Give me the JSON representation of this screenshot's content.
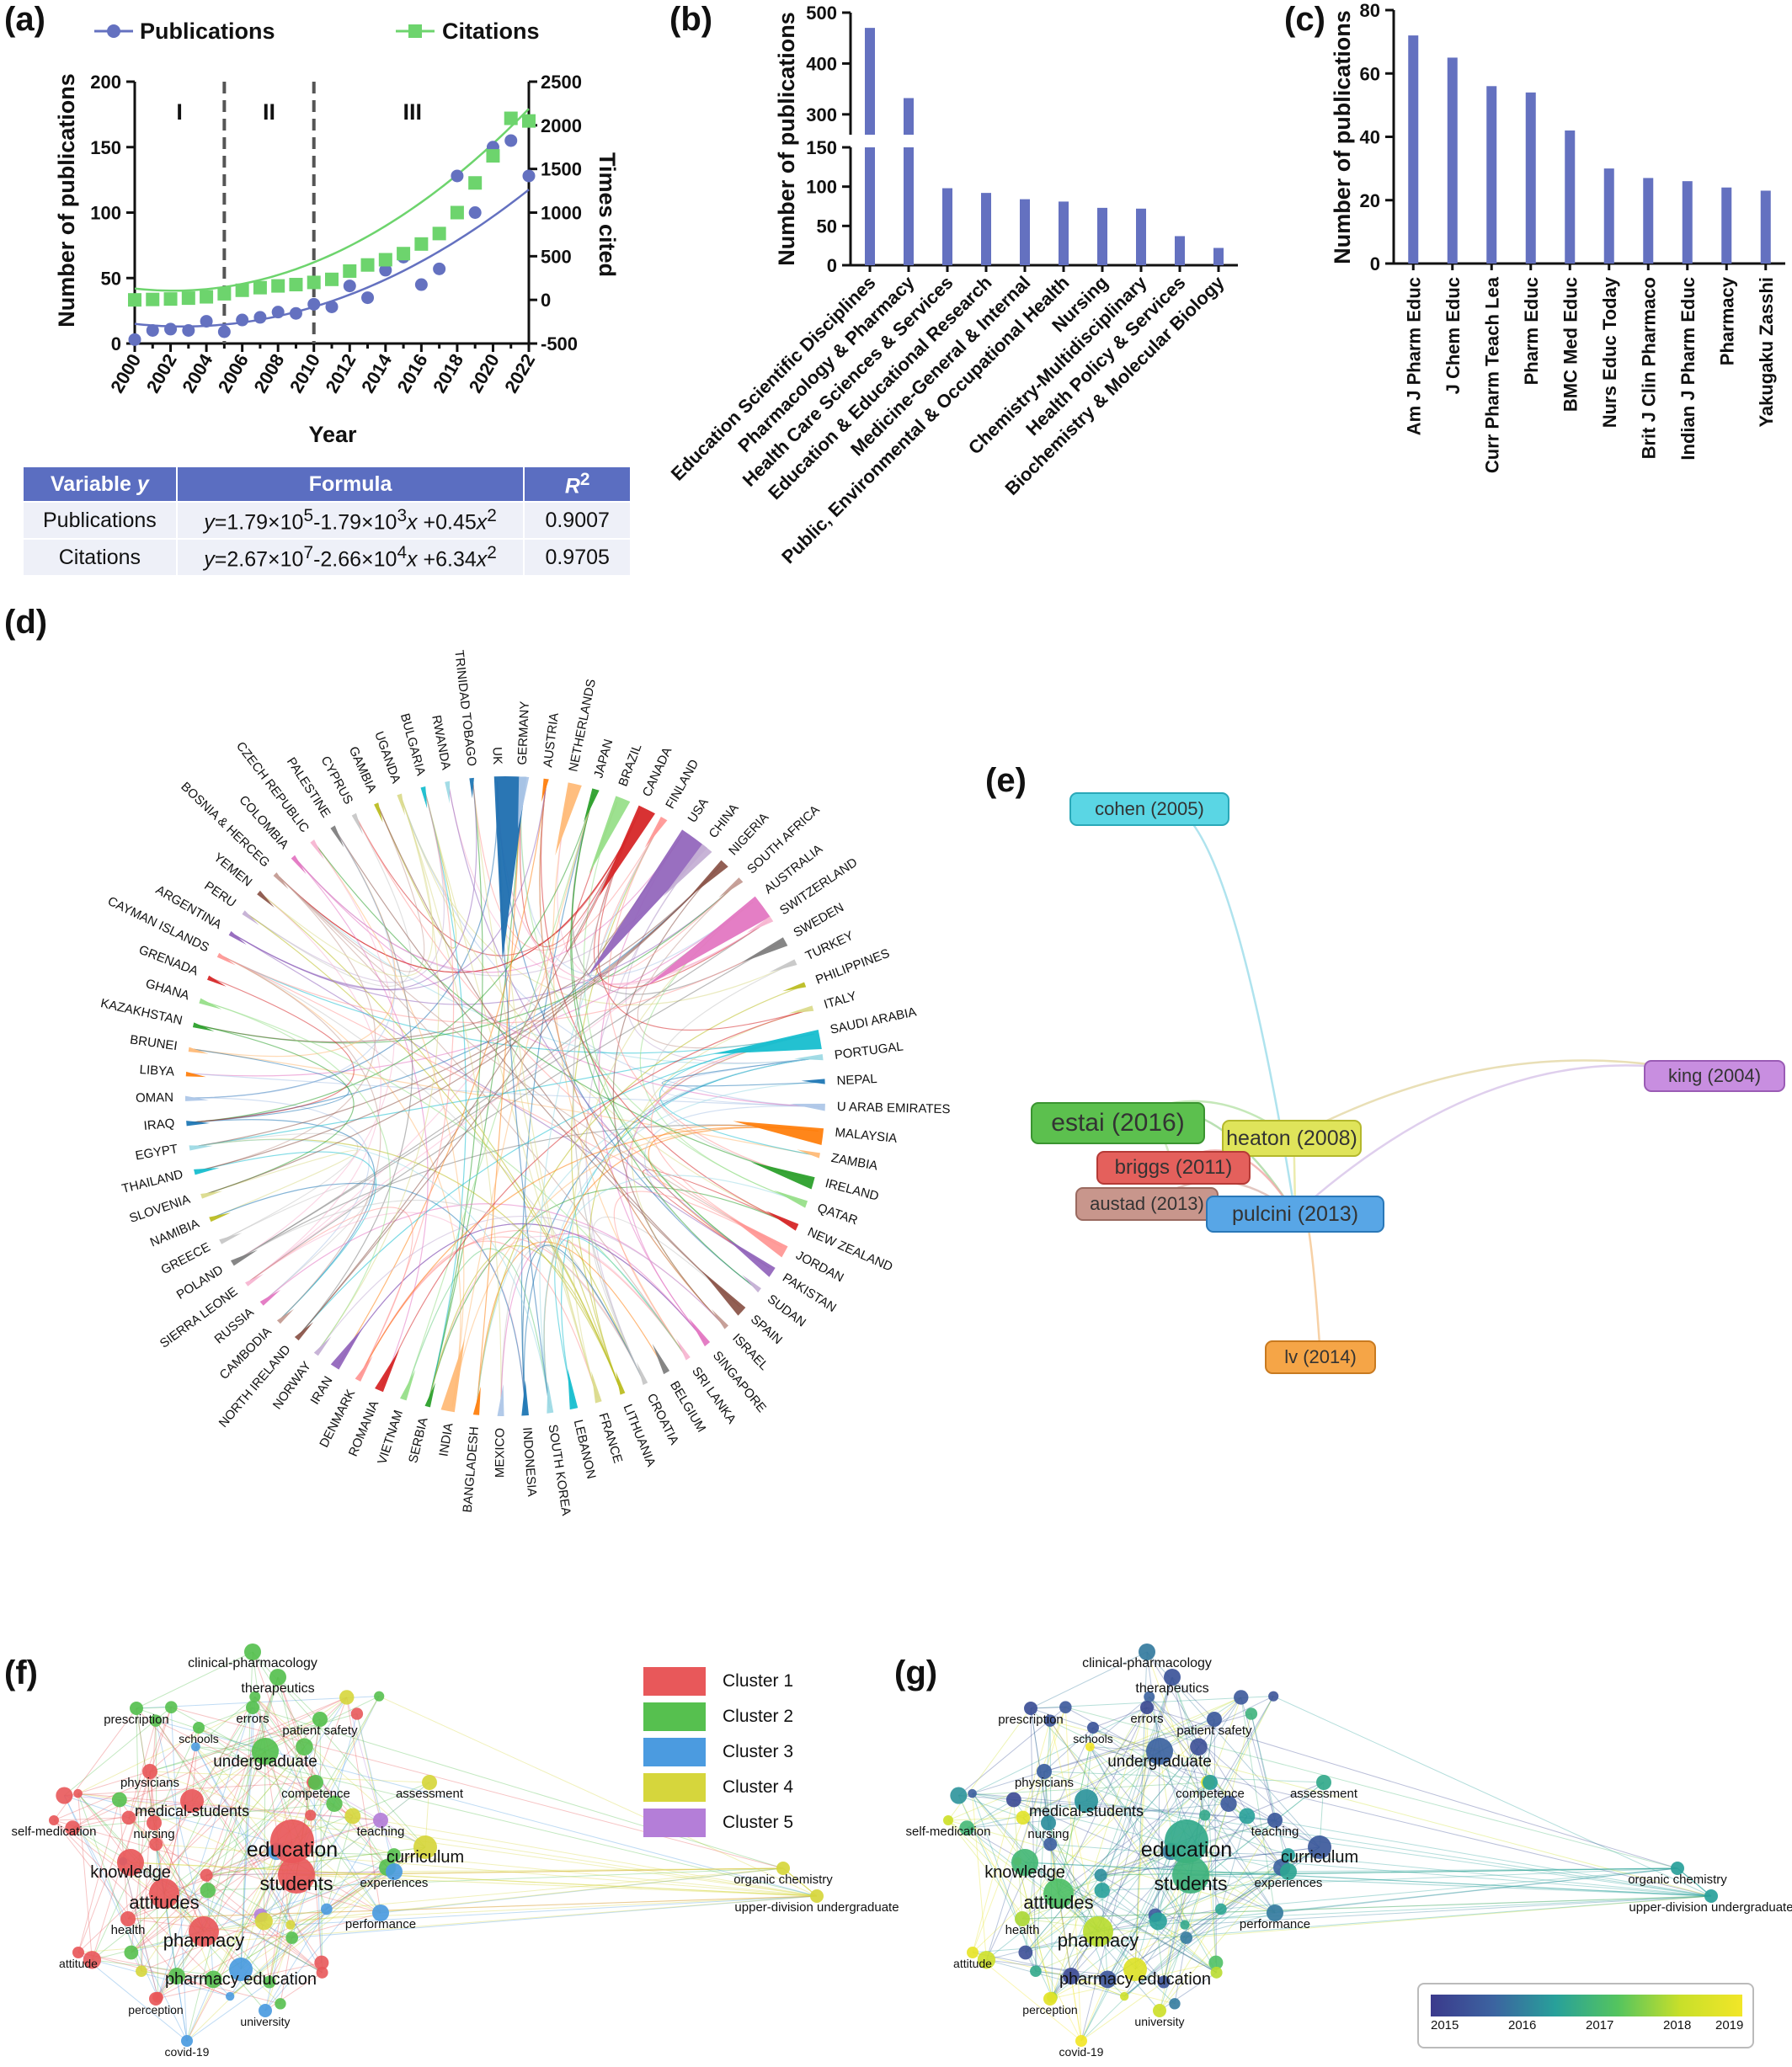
{
  "panels": {
    "a": "(a)",
    "b": "(b)",
    "c": "(c)",
    "d": "(d)",
    "e": "(e)",
    "f": "(f)",
    "g": "(g)"
  },
  "chart_data": [
    {
      "id": "a",
      "type": "scatter",
      "legend": [
        "Publications",
        "Citations"
      ],
      "xlabel": "Year",
      "ylabel": "Number of publications",
      "y2label": "Times cited",
      "xlim": [
        2000,
        2022
      ],
      "ylim": [
        0,
        200
      ],
      "y2lim": [
        -500,
        2500
      ],
      "xticks": [
        "2000",
        "2002",
        "2004",
        "2006",
        "2008",
        "2010",
        "2012",
        "2014",
        "2016",
        "2018",
        "2020",
        "2022"
      ],
      "yticks": [
        "0",
        "50",
        "100",
        "150",
        "200"
      ],
      "y2ticks": [
        "-500",
        "0",
        "500",
        "1000",
        "1500",
        "2000",
        "2500"
      ],
      "phases": [
        "I",
        "II",
        "III"
      ],
      "phase_boundaries": [
        2005,
        2010
      ],
      "colors": {
        "publications": "#6471c0",
        "citations": "#6dd46d"
      },
      "series": [
        {
          "name": "Publications",
          "x": [
            2000,
            2001,
            2002,
            2003,
            2004,
            2005,
            2006,
            2007,
            2008,
            2009,
            2010,
            2011,
            2012,
            2013,
            2014,
            2015,
            2016,
            2017,
            2018,
            2019,
            2020,
            2021,
            2022
          ],
          "values": [
            3,
            10,
            11,
            10,
            17,
            9,
            18,
            20,
            24,
            23,
            30,
            28,
            44,
            35,
            56,
            66,
            45,
            57,
            128,
            100,
            150,
            155,
            128
          ]
        },
        {
          "name": "Citations",
          "x": [
            2000,
            2001,
            2002,
            2003,
            2004,
            2005,
            2006,
            2007,
            2008,
            2009,
            2010,
            2011,
            2012,
            2013,
            2014,
            2015,
            2016,
            2017,
            2018,
            2019,
            2020,
            2021,
            2022
          ],
          "values": [
            0,
            5,
            10,
            20,
            35,
            70,
            110,
            140,
            160,
            175,
            200,
            235,
            330,
            400,
            460,
            530,
            640,
            760,
            1000,
            1340,
            1650,
            2080,
            2050
          ]
        }
      ],
      "formula_table": {
        "headers": [
          "Variable y",
          "Formula",
          "R2"
        ],
        "rows": [
          [
            "Publications",
            "y=1.79×105-1.79×103x +0.45x2",
            "0.9007"
          ],
          [
            "Citations",
            "y=2.67×107-2.66×104x +6.34x2",
            "0.9705"
          ]
        ]
      }
    },
    {
      "id": "b",
      "type": "bar",
      "ylabel": "Number of publications",
      "broken_axis": true,
      "yticks_lower": [
        "0",
        "50",
        "100",
        "150"
      ],
      "yticks_upper": [
        "300",
        "400",
        "500"
      ],
      "categories": [
        "Education Scientific Disciplines",
        "Pharmacology & Pharmacy",
        "Health Care Sciences & Services",
        "Education & Educational Research",
        "Medicine-General & Internal",
        "Public, Environmental & Occupational Health",
        "Nursing",
        "Chemistry-Multidisciplinary",
        "Health Policy & Services",
        "Biochemistry & Molecular Biology"
      ],
      "values": [
        470,
        332,
        98,
        92,
        84,
        81,
        73,
        72,
        37,
        22
      ],
      "color": "#6471c0"
    },
    {
      "id": "c",
      "type": "bar",
      "ylabel": "Number of publications",
      "ylim": [
        0,
        80
      ],
      "yticks": [
        "0",
        "20",
        "40",
        "60",
        "80"
      ],
      "categories": [
        "Am J Pharm Educ",
        "J Chem Educ",
        "Curr Pharm Teach Lea",
        "Pharm Educ",
        "BMC Med Educ",
        "Nurs Educ Today",
        "Brit J Clin Pharmaco",
        "Indian J Pharm Educ",
        "Pharmacy",
        "Yakugaku Zasshi"
      ],
      "values": [
        72,
        65,
        56,
        54,
        42,
        30,
        27,
        26,
        24,
        23
      ],
      "color": "#6471c0"
    }
  ],
  "countries": [
    {
      "name": "UK",
      "color": "#1f6fb0",
      "share": 1.0
    },
    {
      "name": "GERMANY",
      "color": "#aec7e8",
      "share": 0.22
    },
    {
      "name": "AUSTRIA",
      "color": "#ff7f0e",
      "share": 0.05
    },
    {
      "name": "NETHERLANDS",
      "color": "#ffbb78",
      "share": 0.35
    },
    {
      "name": "JAPAN",
      "color": "#2ca02c",
      "share": 0.12
    },
    {
      "name": "BRAZIL",
      "color": "#98df8a",
      "share": 0.4
    },
    {
      "name": "CANADA",
      "color": "#d62728",
      "share": 0.5
    },
    {
      "name": "FINLAND",
      "color": "#ff9896",
      "share": 0.12
    },
    {
      "name": "USA",
      "color": "#9467bd",
      "share": 0.95
    },
    {
      "name": "CHINA",
      "color": "#c5b0d5",
      "share": 0.3
    },
    {
      "name": "NIGERIA",
      "color": "#8c564b",
      "share": 0.2
    },
    {
      "name": "SOUTH AFRICA",
      "color": "#c49c94",
      "share": 0.08
    },
    {
      "name": "AUSTRALIA",
      "color": "#e377c2",
      "share": 0.75
    },
    {
      "name": "SWITZERLAND",
      "color": "#f7b6d2",
      "share": 0.08
    },
    {
      "name": "SWEDEN",
      "color": "#7f7f7f",
      "share": 0.2
    },
    {
      "name": "TURKEY",
      "color": "#c7c7c7",
      "share": 0.08
    },
    {
      "name": "PHILIPPINES",
      "color": "#bcbd22",
      "share": 0.05
    },
    {
      "name": "ITALY",
      "color": "#dbdb8d",
      "share": 0.06
    },
    {
      "name": "SAUDI ARABIA",
      "color": "#17becf",
      "share": 0.55
    },
    {
      "name": "PORTUGAL",
      "color": "#9edae5",
      "share": 0.08
    },
    {
      "name": "NEPAL",
      "color": "#1f77b4",
      "share": 0.05
    },
    {
      "name": "U ARAB EMIRATES",
      "color": "#aec7e8",
      "share": 0.12
    },
    {
      "name": "MALAYSIA",
      "color": "#ff7f0e",
      "share": 0.45
    },
    {
      "name": "ZAMBIA",
      "color": "#ffbb78",
      "share": 0.05
    },
    {
      "name": "IRELAND",
      "color": "#2ca02c",
      "share": 0.3
    },
    {
      "name": "QATAR",
      "color": "#98df8a",
      "share": 0.12
    },
    {
      "name": "NEW ZEALAND",
      "color": "#d62728",
      "share": 0.12
    },
    {
      "name": "JORDAN",
      "color": "#ff9896",
      "share": 0.3
    },
    {
      "name": "PAKISTAN",
      "color": "#9467bd",
      "share": 0.25
    },
    {
      "name": "SUDAN",
      "color": "#c5b0d5",
      "share": 0.05
    },
    {
      "name": "SPAIN",
      "color": "#8c564b",
      "share": 0.25
    },
    {
      "name": "ISRAEL",
      "color": "#c49c94",
      "share": 0.05
    },
    {
      "name": "SINGAPORE",
      "color": "#e377c2",
      "share": 0.1
    },
    {
      "name": "SRI LANKA",
      "color": "#f7b6d2",
      "share": 0.05
    },
    {
      "name": "BELGIUM",
      "color": "#7f7f7f",
      "share": 0.1
    },
    {
      "name": "CROATIA",
      "color": "#c7c7c7",
      "share": 0.05
    },
    {
      "name": "LITHUANIA",
      "color": "#bcbd22",
      "share": 0.05
    },
    {
      "name": "FRANCE",
      "color": "#dbdb8d",
      "share": 0.1
    },
    {
      "name": "LEBANON",
      "color": "#17becf",
      "share": 0.15
    },
    {
      "name": "SOUTH KOREA",
      "color": "#9edae5",
      "share": 0.1
    },
    {
      "name": "INDONESIA",
      "color": "#1f77b4",
      "share": 0.12
    },
    {
      "name": "MEXICO",
      "color": "#aec7e8",
      "share": 0.1
    },
    {
      "name": "BANGLADESH",
      "color": "#ff7f0e",
      "share": 0.08
    },
    {
      "name": "INDIA",
      "color": "#ffbb78",
      "share": 0.35
    },
    {
      "name": "SERBIA",
      "color": "#2ca02c",
      "share": 0.06
    },
    {
      "name": "VIETNAM",
      "color": "#98df8a",
      "share": 0.1
    },
    {
      "name": "ROMANIA",
      "color": "#d62728",
      "share": 0.18
    },
    {
      "name": "DENMARK",
      "color": "#ff9896",
      "share": 0.08
    },
    {
      "name": "IRAN",
      "color": "#9467bd",
      "share": 0.2
    },
    {
      "name": "NORWAY",
      "color": "#c5b0d5",
      "share": 0.05
    },
    {
      "name": "NORTH IRELAND",
      "color": "#8c564b",
      "share": 0.05
    },
    {
      "name": "CAMBODIA",
      "color": "#c49c94",
      "share": 0.03
    },
    {
      "name": "RUSSIA",
      "color": "#e377c2",
      "share": 0.05
    },
    {
      "name": "SIERRA LEONE",
      "color": "#f7b6d2",
      "share": 0.03
    },
    {
      "name": "POLAND",
      "color": "#7f7f7f",
      "share": 0.08
    },
    {
      "name": "GREECE",
      "color": "#c7c7c7",
      "share": 0.05
    },
    {
      "name": "NAMIBIA",
      "color": "#bcbd22",
      "share": 0.04
    },
    {
      "name": "SLOVENIA",
      "color": "#dbdb8d",
      "share": 0.04
    },
    {
      "name": "THAILAND",
      "color": "#17becf",
      "share": 0.06
    },
    {
      "name": "EGYPT",
      "color": "#9edae5",
      "share": 0.05
    },
    {
      "name": "IRAQ",
      "color": "#1f77b4",
      "share": 0.05
    },
    {
      "name": "OMAN",
      "color": "#aec7e8",
      "share": 0.05
    },
    {
      "name": "LIBYA",
      "color": "#ff7f0e",
      "share": 0.03
    },
    {
      "name": "BRUNEI",
      "color": "#ffbb78",
      "share": 0.03
    },
    {
      "name": "KAZAKHSTAN",
      "color": "#2ca02c",
      "share": 0.04
    },
    {
      "name": "GHANA",
      "color": "#98df8a",
      "share": 0.05
    },
    {
      "name": "GRENADA",
      "color": "#d62728",
      "share": 0.03
    },
    {
      "name": "CAYMAN ISLANDS",
      "color": "#ff9896",
      "share": 0.03
    },
    {
      "name": "ARGENTINA",
      "color": "#9467bd",
      "share": 0.03
    },
    {
      "name": "PERU",
      "color": "#c5b0d5",
      "share": 0.03
    },
    {
      "name": "YEMEN",
      "color": "#8c564b",
      "share": 0.04
    },
    {
      "name": "BOSNIA & HERCEG",
      "color": "#c49c94",
      "share": 0.03
    },
    {
      "name": "COLOMBIA",
      "color": "#e377c2",
      "share": 0.04
    },
    {
      "name": "CZECH REPUBLIC",
      "color": "#f7b6d2",
      "share": 0.04
    },
    {
      "name": "PALESTINE",
      "color": "#7f7f7f",
      "share": 0.05
    },
    {
      "name": "CYPRUS",
      "color": "#c7c7c7",
      "share": 0.04
    },
    {
      "name": "GAMBIA",
      "color": "#bcbd22",
      "share": 0.03
    },
    {
      "name": "UGANDA",
      "color": "#dbdb8d",
      "share": 0.04
    },
    {
      "name": "BULGARIA",
      "color": "#17becf",
      "share": 0.04
    },
    {
      "name": "RWANDA",
      "color": "#9edae5",
      "share": 0.04
    },
    {
      "name": "TRINIDAD TOBAGO",
      "color": "#1f77b4",
      "share": 0.03
    }
  ],
  "citation_network": {
    "nodes": [
      {
        "label": "cohen (2005)",
        "fill": "#5ad6e4",
        "border": "#2aa8b8"
      },
      {
        "label": "king (2004)",
        "fill": "#c88ee0",
        "border": "#9a5bb5"
      },
      {
        "label": "estai (2016)",
        "fill": "#5cc04e",
        "border": "#3a9430"
      },
      {
        "label": "heaton (2008)",
        "fill": "#dfe45a",
        "border": "#b4b82c"
      },
      {
        "label": "briggs (2011)",
        "fill": "#e4605c",
        "border": "#b53a36"
      },
      {
        "label": "austad (2013)",
        "fill": "#c8968c",
        "border": "#9a6a60"
      },
      {
        "label": "pulcini (2013)",
        "fill": "#58a6e6",
        "border": "#2a78b8"
      },
      {
        "label": "lv (2014)",
        "fill": "#f5a547",
        "border": "#c87a20"
      }
    ]
  },
  "keyword_network": {
    "keywords": [
      {
        "k": "clinical-pharmacology",
        "c": 2,
        "y": 2016.2
      },
      {
        "k": "therapeutics",
        "c": 2,
        "y": 2015.5
      },
      {
        "k": "prescription",
        "c": 2,
        "y": 2015.4
      },
      {
        "k": "errors",
        "c": 2,
        "y": 2015.3
      },
      {
        "k": "patient safety",
        "c": 2,
        "y": 2015.6
      },
      {
        "k": "schools",
        "c": 2,
        "y": 2015.5
      },
      {
        "k": "undergraduate",
        "c": 2,
        "y": 2015.8
      },
      {
        "k": "physicians",
        "c": 1,
        "y": 2015.7
      },
      {
        "k": "competence",
        "c": 2,
        "y": 2016.8
      },
      {
        "k": "assessment",
        "c": 4,
        "y": 2017.0
      },
      {
        "k": "self-medication",
        "c": 1,
        "y": 2018.5
      },
      {
        "k": "medical-students",
        "c": 1,
        "y": 2016.6
      },
      {
        "k": "nursing",
        "c": 1,
        "y": 2016.5
      },
      {
        "k": "teaching",
        "c": 5,
        "y": 2015.6
      },
      {
        "k": "education",
        "c": 1,
        "y": 2017.0
      },
      {
        "k": "curriculum",
        "c": 4,
        "y": 2015.6
      },
      {
        "k": "knowledge",
        "c": 1,
        "y": 2017.3
      },
      {
        "k": "students",
        "c": 1,
        "y": 2017.2
      },
      {
        "k": "experiences",
        "c": 3,
        "y": 2016.9
      },
      {
        "k": "organic chemistry",
        "c": 4,
        "y": 2016.8
      },
      {
        "k": "attitudes",
        "c": 1,
        "y": 2017.5
      },
      {
        "k": "upper-division undergraduate",
        "c": 4,
        "y": 2016.8
      },
      {
        "k": "health",
        "c": 1,
        "y": 2018.2
      },
      {
        "k": "pharmacy",
        "c": 1,
        "y": 2018.3
      },
      {
        "k": "performance",
        "c": 3,
        "y": 2016.2
      },
      {
        "k": "attitude",
        "c": 1,
        "y": 2019.0
      },
      {
        "k": "pharmacy education",
        "c": 3,
        "y": 2018.8
      },
      {
        "k": "perception",
        "c": 1,
        "y": 2018.9
      },
      {
        "k": "university",
        "c": 3,
        "y": 2018.5
      },
      {
        "k": "covid-19",
        "c": 3,
        "y": 2019.2
      }
    ],
    "legend": [
      {
        "label": "Cluster 1",
        "color": "#e8585a"
      },
      {
        "label": "Cluster 2",
        "color": "#56c04f"
      },
      {
        "label": "Cluster 3",
        "color": "#4b9be0"
      },
      {
        "label": "Cluster 4",
        "color": "#d6d63c"
      },
      {
        "label": "Cluster 5",
        "color": "#b47ed8"
      }
    ],
    "colorbar_ticks": [
      "2015",
      "2016",
      "2017",
      "2018",
      "2019"
    ]
  }
}
